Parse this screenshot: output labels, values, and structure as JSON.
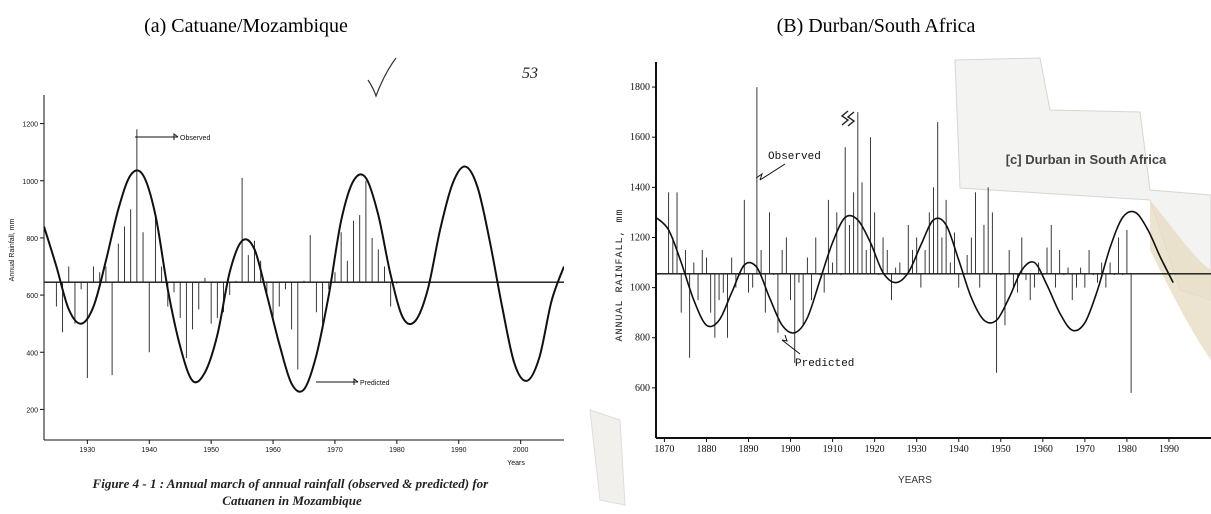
{
  "chart_data": [
    {
      "type": "line",
      "title": "(a) Catuane/Mozambique",
      "page_number": "53",
      "xlabel": "Years",
      "ylabel": "Annual Rainfall, mm",
      "caption": "Figure 4 - 1 : Annual march of annual rainfall (observed & predicted) for Catuanen in Mozambique",
      "xlim": [
        1923,
        2007
      ],
      "ylim": [
        100,
        1300
      ],
      "x_ticks": [
        1930,
        1940,
        1950,
        1960,
        1970,
        1980,
        1990,
        2000
      ],
      "y_ticks": [
        200,
        400,
        600,
        800,
        1000,
        1200
      ],
      "baseline": 645,
      "annotations": {
        "observed": "Observed",
        "predicted": "Predicted"
      },
      "series": [
        {
          "name": "Observed",
          "style": "bars-from-baseline",
          "x": [
            1925,
            1926,
            1927,
            1928,
            1929,
            1930,
            1931,
            1932,
            1933,
            1934,
            1935,
            1936,
            1937,
            1938,
            1939,
            1940,
            1941,
            1942,
            1943,
            1944,
            1945,
            1946,
            1947,
            1948,
            1949,
            1950,
            1951,
            1952,
            1953,
            1954,
            1955,
            1956,
            1957,
            1958,
            1959,
            1960,
            1961,
            1962,
            1963,
            1964,
            1965,
            1966,
            1967,
            1968,
            1969,
            1970,
            1971,
            1972,
            1973,
            1974,
            1975,
            1976,
            1977,
            1978,
            1979,
            1980
          ],
          "values": [
            560,
            470,
            700,
            500,
            620,
            310,
            700,
            680,
            700,
            320,
            780,
            840,
            900,
            1180,
            820,
            400,
            880,
            700,
            560,
            610,
            520,
            380,
            480,
            550,
            660,
            500,
            520,
            540,
            600,
            650,
            1010,
            740,
            790,
            720,
            600,
            520,
            560,
            620,
            480,
            340,
            650,
            810,
            540,
            500,
            620,
            680,
            820,
            720,
            860,
            880,
            1000,
            800,
            760,
            700,
            560,
            640
          ]
        },
        {
          "name": "Predicted",
          "style": "curve",
          "x": [
            1923,
            1925,
            1927,
            1929,
            1931,
            1933,
            1935,
            1937,
            1939,
            1941,
            1943,
            1945,
            1947,
            1949,
            1951,
            1953,
            1955,
            1957,
            1959,
            1961,
            1963,
            1965,
            1967,
            1969,
            1971,
            1973,
            1975,
            1977,
            1979,
            1981,
            1983,
            1985,
            1987,
            1989,
            1991,
            1993,
            1995,
            1997,
            1999,
            2001,
            2003,
            2005,
            2007
          ],
          "values": [
            840,
            700,
            550,
            500,
            560,
            720,
            900,
            1020,
            1020,
            880,
            620,
            420,
            300,
            330,
            460,
            680,
            790,
            760,
            600,
            430,
            290,
            270,
            390,
            600,
            860,
            1000,
            1010,
            880,
            670,
            520,
            510,
            620,
            830,
            990,
            1050,
            980,
            790,
            560,
            360,
            300,
            380,
            580,
            700
          ]
        }
      ]
    },
    {
      "type": "line",
      "title": "(B) Durban/South Africa",
      "inset_label": "[c] Durban in South Africa",
      "xlabel": "YEARS",
      "ylabel": "ANNUAL RAINFALL, mm",
      "xlim": [
        1868,
        2000
      ],
      "ylim": [
        400,
        1900
      ],
      "x_ticks": [
        1870,
        1880,
        1890,
        1900,
        1910,
        1920,
        1930,
        1940,
        1950,
        1960,
        1970,
        1980,
        1990
      ],
      "y_ticks": [
        600,
        800,
        1000,
        1200,
        1400,
        1600,
        1800
      ],
      "baseline": 1055,
      "annotations": {
        "observed": "Observed",
        "predicted": "Predicted"
      },
      "series": [
        {
          "name": "Observed",
          "style": "bars-from-baseline",
          "x": [
            1871,
            1872,
            1873,
            1874,
            1875,
            1876,
            1877,
            1878,
            1879,
            1880,
            1881,
            1882,
            1883,
            1884,
            1885,
            1886,
            1887,
            1888,
            1889,
            1890,
            1891,
            1892,
            1893,
            1894,
            1895,
            1896,
            1897,
            1898,
            1899,
            1900,
            1901,
            1902,
            1903,
            1904,
            1905,
            1906,
            1907,
            1908,
            1909,
            1910,
            1911,
            1912,
            1913,
            1914,
            1915,
            1916,
            1917,
            1918,
            1919,
            1920,
            1921,
            1922,
            1923,
            1924,
            1925,
            1926,
            1927,
            1928,
            1929,
            1930,
            1931,
            1932,
            1933,
            1934,
            1935,
            1936,
            1937,
            1938,
            1939,
            1940,
            1941,
            1942,
            1943,
            1944,
            1945,
            1946,
            1947,
            1948,
            1949,
            1950,
            1951,
            1952,
            1953,
            1954,
            1955,
            1956,
            1957,
            1958,
            1959,
            1960,
            1961,
            1962,
            1963,
            1964,
            1965,
            1966,
            1967,
            1968,
            1969,
            1970,
            1971,
            1972,
            1973,
            1974,
            1975,
            1976,
            1977,
            1978,
            1979,
            1980,
            1981
          ],
          "values": [
            1380,
            1200,
            1380,
            900,
            1150,
            720,
            1100,
            950,
            1150,
            1120,
            900,
            800,
            950,
            980,
            800,
            1120,
            1000,
            1050,
            1350,
            980,
            1000,
            1800,
            1150,
            900,
            1300,
            1050,
            820,
            1150,
            1200,
            950,
            700,
            1020,
            850,
            1120,
            950,
            1200,
            1050,
            980,
            1350,
            1100,
            1300,
            1050,
            1560,
            1250,
            1380,
            1700,
            1420,
            1150,
            1600,
            1300,
            1050,
            1200,
            1150,
            950,
            1080,
            1100,
            1050,
            1250,
            1150,
            1200,
            1000,
            1150,
            1300,
            1400,
            1660,
            1200,
            1350,
            1100,
            1220,
            1000,
            1050,
            1130,
            1200,
            1380,
            1000,
            1250,
            1400,
            1300,
            660,
            1050,
            850,
            1150,
            1000,
            980,
            1200,
            1030,
            950,
            1000,
            1100,
            1050,
            1160,
            1250,
            1000,
            1150,
            1050,
            1080,
            950,
            1000,
            1080,
            1000,
            1150,
            1050,
            1020,
            1100,
            1000,
            1100,
            1050,
            1200,
            1050,
            1230,
            580
          ]
        },
        {
          "name": "Predicted",
          "style": "curve",
          "x": [
            1868,
            1871,
            1874,
            1877,
            1880,
            1883,
            1886,
            1889,
            1892,
            1895,
            1898,
            1901,
            1904,
            1907,
            1910,
            1913,
            1916,
            1919,
            1922,
            1925,
            1928,
            1931,
            1934,
            1937,
            1940,
            1943,
            1946,
            1949,
            1952,
            1955,
            1958,
            1961,
            1964,
            1967,
            1970,
            1973,
            1976,
            1979,
            1982,
            1985,
            1988,
            1991
          ],
          "values": [
            1280,
            1230,
            1100,
            950,
            850,
            870,
            980,
            1090,
            1080,
            960,
            850,
            820,
            880,
            1030,
            1180,
            1280,
            1270,
            1180,
            1060,
            1020,
            1060,
            1170,
            1270,
            1250,
            1110,
            960,
            870,
            870,
            960,
            1070,
            1100,
            1010,
            900,
            830,
            860,
            990,
            1160,
            1280,
            1300,
            1230,
            1120,
            1020
          ]
        }
      ]
    }
  ]
}
